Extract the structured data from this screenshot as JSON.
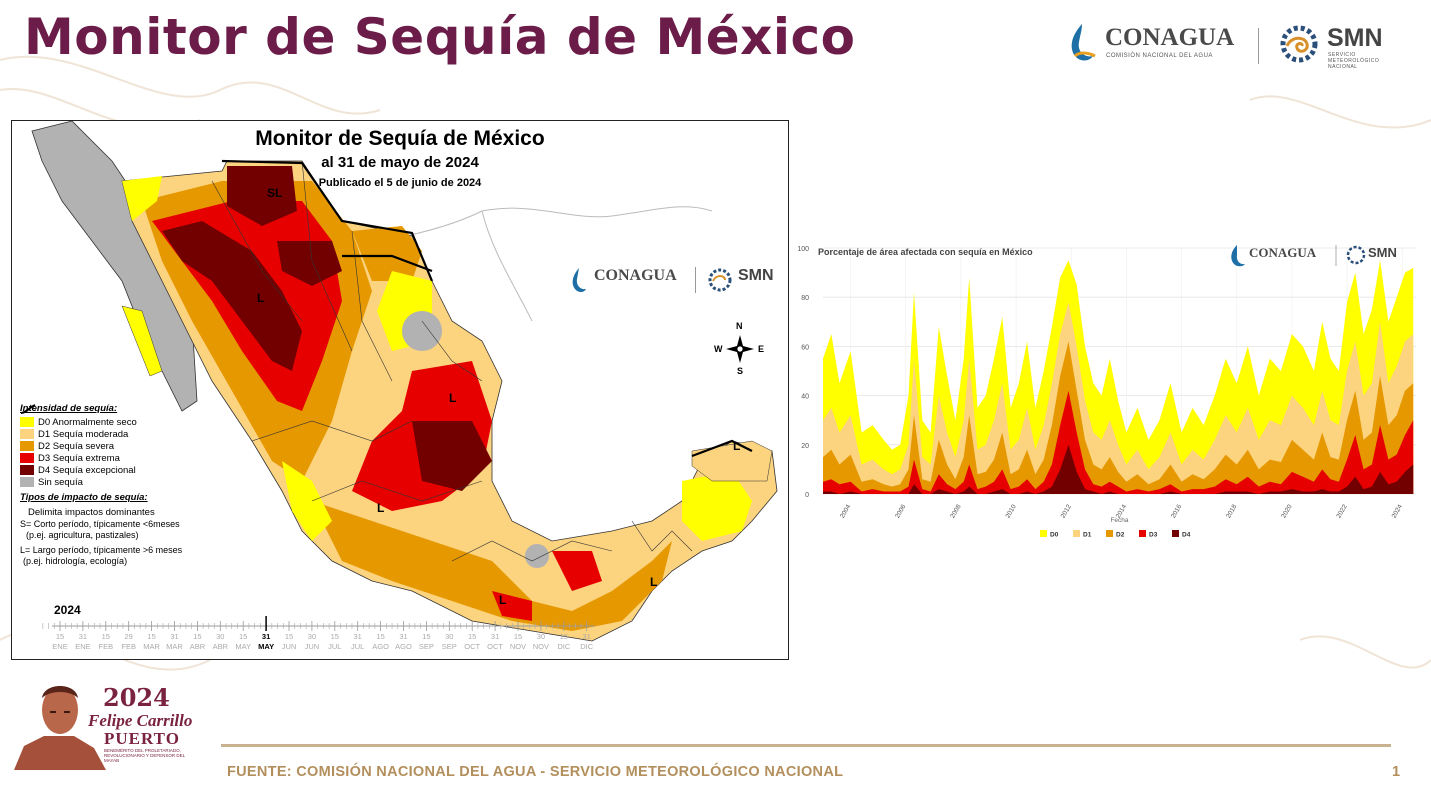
{
  "slide": {
    "title": "Monitor de Sequía de México",
    "footer": "FUENTE: COMISIÓN NACIONAL DEL AGUA - SERVICIO METEOROLÓGICO NACIONAL",
    "page_number": "1",
    "logo_conagua": "CONAGUA",
    "logo_conagua_sub": "COMISIÓN NACIONAL DEL AGUA",
    "logo_smn": "SMN",
    "logo_smn_sub": "SERVICIO METEOROLÓGICO NACIONAL",
    "badge_year": "2024",
    "badge_name_1": "Felipe Carrillo",
    "badge_name_2": "PUERTO",
    "badge_small": "BENEMÉRITO DEL PROLETARIADO, REVOLUCIONARIO Y DEFENSOR DEL MAYAB",
    "colors": {
      "title": "#6b1c49",
      "footer": "#b28f5c",
      "accent": "#c9b28f"
    }
  },
  "map": {
    "title": "Monitor de Sequía de México",
    "subtitle": "al 31 de mayo de 2024",
    "published": "Publicado el 5 de junio de 2024",
    "legend_header": "Intensidad de sequía:",
    "legend": [
      {
        "label": "D0 Anormalmente seco",
        "color": "#ffff00"
      },
      {
        "label": "D1 Sequía moderada",
        "color": "#fcd37f"
      },
      {
        "label": "D2 Sequía severa",
        "color": "#e69800"
      },
      {
        "label": "D3 Sequía extrema",
        "color": "#e60000"
      },
      {
        "label": "D4 Sequía excepcional",
        "color": "#730000"
      },
      {
        "label": "Sin sequía",
        "color": "#b2b2b2"
      }
    ],
    "impact_header": "Tipos de impacto de sequía:",
    "impact_line": "Delimita impactos dominantes",
    "impact_s_1": "S= Corto período, típicamente <6meses",
    "impact_s_2": "(p.ej. agricultura, pastizales)",
    "impact_l_1": "L= Largo período, típicamente >6 meses",
    "impact_l_2": "(p.ej. hidrología, ecología)",
    "region_labels": [
      "SL",
      "L",
      "L",
      "L",
      "L",
      "L",
      "L"
    ],
    "compass": {
      "n": "N",
      "s": "S",
      "e": "E",
      "w": "W"
    },
    "timeline_year": "2024",
    "timeline_days": [
      "15",
      "31",
      "15",
      "29",
      "15",
      "31",
      "15",
      "30",
      "15",
      "31",
      "15",
      "30",
      "15",
      "31",
      "15",
      "31",
      "15",
      "30",
      "15",
      "31",
      "15",
      "30",
      "15",
      "31"
    ],
    "timeline_months": [
      "ENE",
      "ENE",
      "FEB",
      "FEB",
      "MAR",
      "MAR",
      "ABR",
      "ABR",
      "MAY",
      "MAY",
      "JUN",
      "JUN",
      "JUL",
      "JUL",
      "AGO",
      "AGO",
      "SEP",
      "SEP",
      "OCT",
      "OCT",
      "NOV",
      "NOV",
      "DIC",
      "DIC"
    ],
    "timeline_current_index": 9
  },
  "chart_data": {
    "type": "area",
    "title": "Porcentaje de área afectada con sequía en México",
    "xlabel": "Fecha",
    "ylabel": "",
    "xlim": [
      2003,
      2024.5
    ],
    "ylim": [
      0,
      100
    ],
    "y_ticks": [
      0,
      20,
      40,
      60,
      80,
      100
    ],
    "x_ticks": [
      "2004",
      "2006",
      "2008",
      "2010",
      "2012",
      "2014",
      "2016",
      "2018",
      "2020",
      "2022",
      "2024"
    ],
    "x": [
      2003.0,
      2003.3,
      2003.6,
      2004.0,
      2004.4,
      2004.8,
      2005.2,
      2005.5,
      2005.8,
      2006.1,
      2006.3,
      2006.6,
      2006.9,
      2007.2,
      2007.5,
      2007.8,
      2008.1,
      2008.3,
      2008.6,
      2008.9,
      2009.2,
      2009.5,
      2009.8,
      2010.1,
      2010.4,
      2010.7,
      2011.0,
      2011.3,
      2011.6,
      2011.9,
      2012.2,
      2012.5,
      2012.8,
      2013.1,
      2013.4,
      2013.7,
      2014.0,
      2014.4,
      2014.8,
      2015.2,
      2015.6,
      2016.0,
      2016.4,
      2016.8,
      2017.2,
      2017.6,
      2018.0,
      2018.4,
      2018.8,
      2019.2,
      2019.6,
      2020.0,
      2020.4,
      2020.8,
      2021.1,
      2021.4,
      2021.7,
      2022.0,
      2022.3,
      2022.6,
      2022.9,
      2023.2,
      2023.5,
      2023.8,
      2024.1,
      2024.4
    ],
    "series": [
      {
        "name": "D0",
        "color": "#ffff00",
        "values": [
          55,
          65,
          45,
          58,
          25,
          28,
          22,
          18,
          20,
          40,
          82,
          30,
          25,
          68,
          48,
          30,
          55,
          88,
          35,
          40,
          55,
          72,
          35,
          45,
          62,
          35,
          50,
          68,
          88,
          95,
          85,
          60,
          45,
          40,
          55,
          38,
          25,
          35,
          22,
          30,
          45,
          25,
          35,
          28,
          40,
          55,
          45,
          60,
          40,
          55,
          50,
          65,
          60,
          50,
          70,
          55,
          50,
          78,
          90,
          65,
          75,
          95,
          70,
          80,
          90,
          92
        ]
      },
      {
        "name": "D1",
        "color": "#fcd37f",
        "values": [
          30,
          35,
          25,
          32,
          12,
          14,
          10,
          8,
          10,
          20,
          55,
          15,
          12,
          40,
          25,
          15,
          30,
          55,
          18,
          20,
          30,
          45,
          18,
          22,
          35,
          18,
          28,
          45,
          65,
          78,
          60,
          38,
          25,
          22,
          30,
          20,
          12,
          18,
          10,
          15,
          25,
          12,
          18,
          14,
          22,
          32,
          25,
          35,
          22,
          30,
          28,
          40,
          35,
          28,
          42,
          30,
          28,
          50,
          62,
          40,
          45,
          70,
          45,
          52,
          62,
          65
        ]
      },
      {
        "name": "D2",
        "color": "#e69800",
        "values": [
          15,
          18,
          12,
          16,
          5,
          6,
          4,
          3,
          4,
          10,
          32,
          6,
          5,
          22,
          12,
          6,
          15,
          32,
          8,
          9,
          14,
          25,
          8,
          10,
          18,
          8,
          14,
          28,
          48,
          62,
          42,
          22,
          12,
          10,
          15,
          9,
          5,
          8,
          4,
          6,
          12,
          5,
          8,
          6,
          10,
          16,
          12,
          18,
          10,
          14,
          13,
          22,
          18,
          14,
          25,
          15,
          14,
          30,
          42,
          22,
          25,
          48,
          28,
          32,
          42,
          45
        ]
      },
      {
        "name": "D3",
        "color": "#e60000",
        "values": [
          5,
          6,
          4,
          5,
          1,
          2,
          1,
          1,
          1,
          3,
          14,
          2,
          1,
          8,
          4,
          2,
          5,
          12,
          2,
          3,
          5,
          10,
          2,
          3,
          6,
          2,
          5,
          12,
          28,
          42,
          25,
          10,
          4,
          3,
          5,
          3,
          1,
          2,
          1,
          2,
          4,
          1,
          2,
          2,
          3,
          6,
          4,
          7,
          3,
          5,
          4,
          9,
          7,
          5,
          10,
          6,
          5,
          14,
          24,
          10,
          12,
          28,
          14,
          16,
          24,
          30
        ]
      },
      {
        "name": "D4",
        "color": "#730000",
        "values": [
          1,
          1,
          0,
          1,
          0,
          0,
          0,
          0,
          0,
          0,
          4,
          0,
          0,
          2,
          1,
          0,
          1,
          3,
          0,
          0,
          1,
          2,
          0,
          0,
          1,
          0,
          1,
          3,
          10,
          20,
          9,
          2,
          1,
          0,
          1,
          0,
          0,
          0,
          0,
          0,
          1,
          0,
          0,
          0,
          0,
          1,
          1,
          1,
          0,
          1,
          1,
          2,
          1,
          1,
          2,
          1,
          1,
          3,
          7,
          2,
          3,
          9,
          4,
          5,
          9,
          12
        ]
      }
    ],
    "legend": [
      "D0",
      "D1",
      "D2",
      "D3",
      "D4"
    ],
    "legend_placement": "bottom",
    "grid": true,
    "logo_conagua": "CONAGUA",
    "logo_smn": "SMN"
  }
}
